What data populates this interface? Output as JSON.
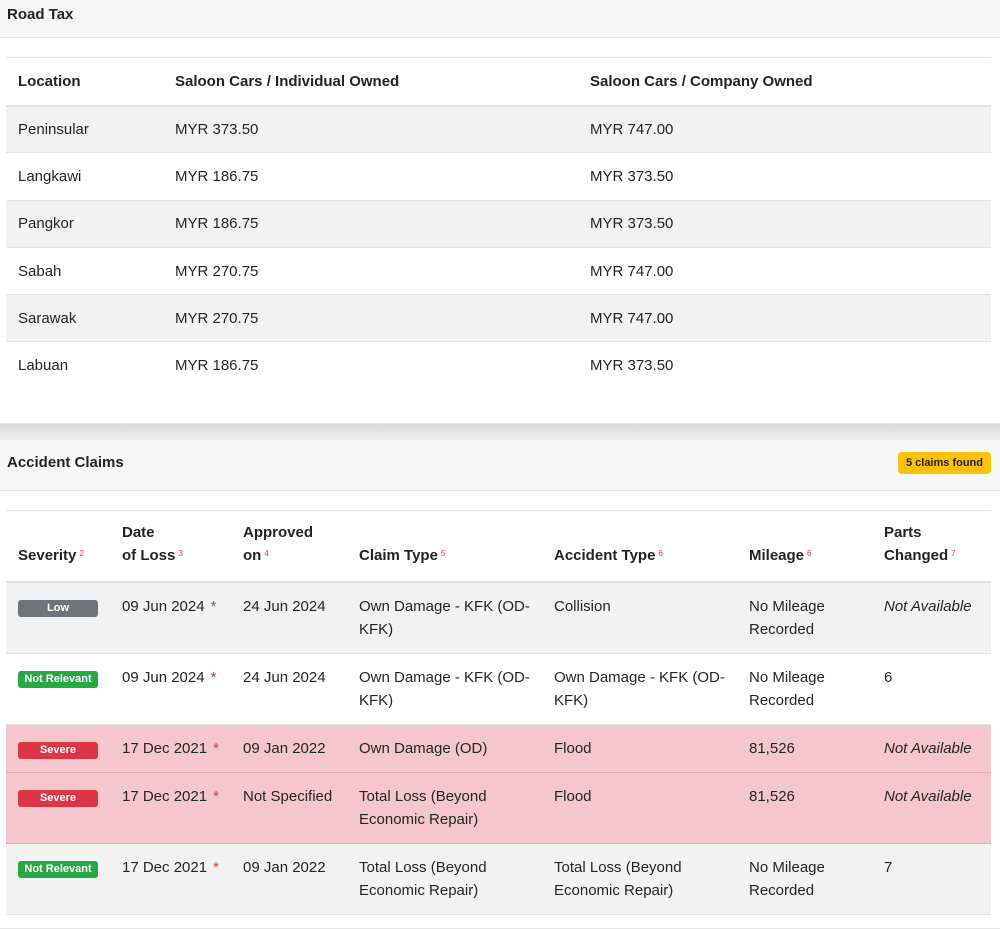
{
  "road_tax": {
    "title": "Road Tax",
    "headers": [
      "Location",
      "Saloon Cars / Individual Owned",
      "Saloon Cars / Company Owned"
    ],
    "rows": [
      [
        "Peninsular",
        "MYR 373.50",
        "MYR 747.00"
      ],
      [
        "Langkawi",
        "MYR 186.75",
        "MYR 373.50"
      ],
      [
        "Pangkor",
        "MYR 186.75",
        "MYR 373.50"
      ],
      [
        "Sabah",
        "MYR 270.75",
        "MYR 747.00"
      ],
      [
        "Sarawak",
        "MYR 270.75",
        "MYR 747.00"
      ],
      [
        "Labuan",
        "MYR 186.75",
        "MYR 373.50"
      ]
    ]
  },
  "claims": {
    "title": "Accident Claims",
    "count_badge": "5 claims found",
    "headers": [
      {
        "l1": "",
        "l2": "Severity",
        "sup": "2"
      },
      {
        "l1": "Date",
        "l2": "of Loss",
        "sup": "3"
      },
      {
        "l1": "Approved",
        "l2": "on",
        "sup": "4"
      },
      {
        "l1": "",
        "l2": "Claim Type",
        "sup": "5"
      },
      {
        "l1": "",
        "l2": "Accident Type",
        "sup": "6"
      },
      {
        "l1": "",
        "l2": "Mileage",
        "sup": "6"
      },
      {
        "l1": "Parts",
        "l2": "Changed",
        "sup": "7"
      }
    ],
    "required_mark": "*",
    "rows": [
      {
        "severity": "Low",
        "date_of_loss": "09 Jun 2024",
        "approved_on": "24 Jun 2024",
        "claim_type": "Own Damage - KFK (OD-KFK)",
        "accident_type": "Collision",
        "mileage": "No Mileage Recorded",
        "parts_changed": "Not Available"
      },
      {
        "severity": "Not Relevant",
        "date_of_loss": "09 Jun 2024",
        "approved_on": "24 Jun 2024",
        "claim_type": "Own Damage - KFK (OD-KFK)",
        "accident_type": "Own Damage - KFK (OD-KFK)",
        "mileage": "No Mileage Recorded",
        "parts_changed": "6"
      },
      {
        "severity": "Severe",
        "date_of_loss": "17 Dec 2021",
        "approved_on": "09 Jan 2022",
        "claim_type": "Own Damage (OD)",
        "accident_type": "Flood",
        "mileage": "81,526",
        "parts_changed": "Not Available"
      },
      {
        "severity": "Severe",
        "date_of_loss": "17 Dec 2021",
        "approved_on": "Not Specified",
        "claim_type": "Total Loss (Beyond Economic Repair)",
        "accident_type": "Flood",
        "mileage": "81,526",
        "parts_changed": "Not Available"
      },
      {
        "severity": "Not Relevant",
        "date_of_loss": "17 Dec 2021",
        "approved_on": "09 Jan 2022",
        "claim_type": "Total Loss (Beyond Economic Repair)",
        "accident_type": "Total Loss (Beyond Economic Repair)",
        "mileage": "No Mileage Recorded",
        "parts_changed": "7"
      }
    ],
    "colors": {
      "Low": "#6c757d",
      "Not Relevant": "#28a745",
      "Severe": "#dc3545",
      "severe_row": "#f5c6cb",
      "badge": "#ffc107"
    }
  }
}
